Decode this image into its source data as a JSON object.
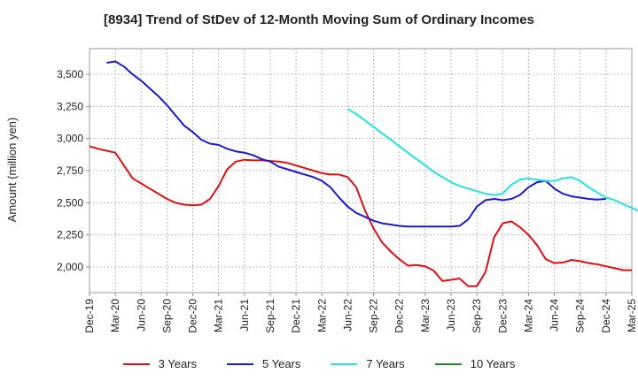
{
  "chart_data": {
    "type": "line",
    "title": "[8934]  Trend of StDev of 12-Month Moving Sum of Ordinary Incomes",
    "ylabel": "Amount (million yen)",
    "xlabel": "",
    "ylim": [
      1800,
      3700
    ],
    "yticks": [
      2000,
      2250,
      2500,
      2750,
      3000,
      3250,
      3500
    ],
    "ytick_labels": [
      "2,000",
      "2,250",
      "2,500",
      "2,750",
      "3,000",
      "3,250",
      "3,500"
    ],
    "x_categories": [
      "Dec-19",
      "Mar-20",
      "Jun-20",
      "Sep-20",
      "Dec-20",
      "Mar-21",
      "Jun-21",
      "Sep-21",
      "Dec-21",
      "Mar-22",
      "Jun-22",
      "Sep-22",
      "Dec-22",
      "Mar-23",
      "Jun-23",
      "Sep-23",
      "Dec-23",
      "Mar-24",
      "Jun-24",
      "Sep-24",
      "Dec-24",
      "Mar-25"
    ],
    "grid": true,
    "legend_position": "bottom",
    "series": [
      {
        "name": "3 Years",
        "color": "#dd1111",
        "start_index": 0,
        "values": [
          2940,
          2920,
          2905,
          2890,
          2790,
          2690,
          2650,
          2610,
          2570,
          2530,
          2500,
          2485,
          2480,
          2485,
          2530,
          2630,
          2760,
          2820,
          2835,
          2830,
          2830,
          2825,
          2820,
          2810,
          2790,
          2770,
          2750,
          2730,
          2720,
          2720,
          2700,
          2620,
          2440,
          2300,
          2190,
          2120,
          2060,
          2010,
          2015,
          2005,
          1970,
          1890,
          1900,
          1910,
          1850,
          1850,
          1960,
          2230,
          2340,
          2355,
          2310,
          2250,
          2170,
          2060,
          2030,
          2035,
          2055,
          2045,
          2030,
          2020,
          2005,
          1990,
          1975,
          1975
        ]
      },
      {
        "name": "5 Years",
        "color": "#1a1acc",
        "start_index": 2,
        "values": [
          3590,
          3600,
          3560,
          3500,
          3450,
          3390,
          3330,
          3260,
          3180,
          3100,
          3050,
          2990,
          2960,
          2950,
          2920,
          2900,
          2890,
          2870,
          2840,
          2820,
          2780,
          2760,
          2740,
          2720,
          2700,
          2670,
          2620,
          2540,
          2470,
          2420,
          2390,
          2360,
          2340,
          2330,
          2320,
          2315,
          2315,
          2315,
          2315,
          2315,
          2315,
          2320,
          2370,
          2470,
          2520,
          2530,
          2520,
          2530,
          2560,
          2620,
          2660,
          2670,
          2610,
          2570,
          2550,
          2540,
          2530,
          2525,
          2530
        ]
      },
      {
        "name": "7 Years",
        "color": "#22e3e3",
        "start_index": 30,
        "values": [
          3230,
          3190,
          3140,
          3090,
          3040,
          2990,
          2940,
          2890,
          2840,
          2790,
          2740,
          2700,
          2660,
          2630,
          2610,
          2590,
          2570,
          2560,
          2570,
          2640,
          2680,
          2690,
          2680,
          2670,
          2670,
          2690,
          2700,
          2670,
          2620,
          2580,
          2540,
          2520,
          2490,
          2460,
          2430
        ]
      },
      {
        "name": "10 Years",
        "color": "#228822",
        "start_index": 0,
        "values": []
      }
    ]
  }
}
